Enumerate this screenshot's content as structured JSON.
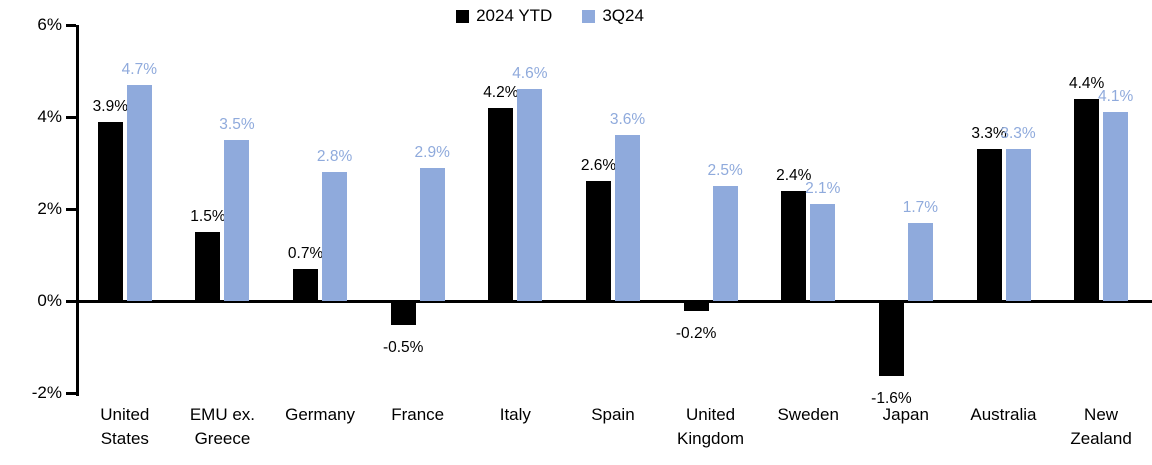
{
  "chart_data": {
    "type": "bar",
    "title": "",
    "categories": [
      "United States",
      "EMU ex. Greece",
      "Germany",
      "France",
      "Italy",
      "Spain",
      "United Kingdom",
      "Sweden",
      "Japan",
      "Australia",
      "New Zealand"
    ],
    "series": [
      {
        "name": "2024 YTD",
        "color": "#000000",
        "values": [
          3.9,
          1.5,
          0.7,
          -0.5,
          4.2,
          2.6,
          -0.2,
          2.4,
          -1.6,
          3.3,
          4.4
        ],
        "labels": [
          "3.9%",
          "1.5%",
          "0.7%",
          "-0.5%",
          "4.2%",
          "2.6%",
          "-0.2%",
          "2.4%",
          "-1.6%",
          "3.3%",
          "4.4%"
        ]
      },
      {
        "name": "3Q24",
        "color": "#8FAADC",
        "values": [
          4.7,
          3.5,
          2.8,
          2.9,
          4.6,
          3.6,
          2.5,
          2.1,
          1.7,
          3.3,
          4.1
        ],
        "labels": [
          "4.7%",
          "3.5%",
          "2.8%",
          "2.9%",
          "4.6%",
          "3.6%",
          "2.5%",
          "2.1%",
          "1.7%",
          "3.3%",
          "4.1%"
        ]
      }
    ],
    "y_axis": {
      "min": -2,
      "max": 6,
      "tick_step": 2,
      "tick_labels": [
        "6%",
        "4%",
        "2%",
        "0%",
        "-2%"
      ]
    },
    "legend_position": "top",
    "grid": "off",
    "axis_color": "#000000"
  }
}
